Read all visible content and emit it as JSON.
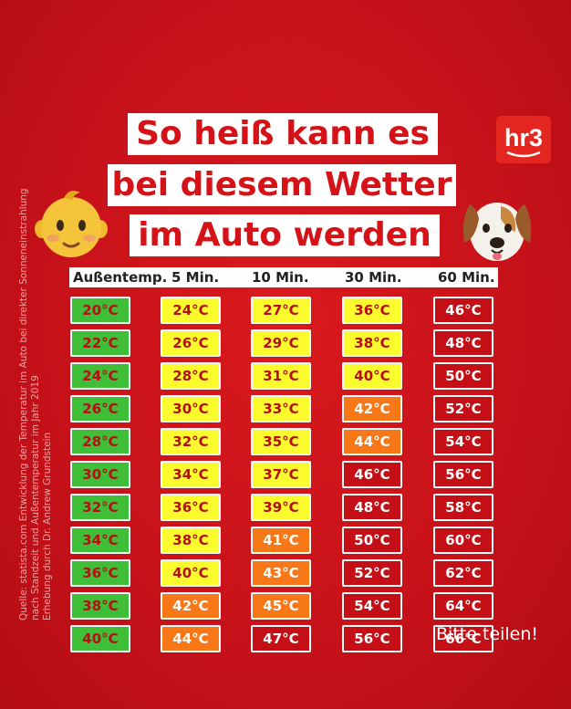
{
  "source_lines": [
    "Quelle: statista.com Entwicklung der Temperatur im Auto bei  direkter Sonneneinstrahlung",
    "nach Standzeit und Außentemperatur im Jahr 2019",
    "Erhebung durch Dr. Andrew Grundstein"
  ],
  "title": {
    "line1": "So heiß kann es",
    "line2": "bei diesem Wetter",
    "line3": "im Auto werden"
  },
  "logo": {
    "text": "hr3",
    "color": "#e3261f"
  },
  "emojis": {
    "left": "baby-face",
    "right": "dog-face"
  },
  "header": {
    "col1": "Außentemp.",
    "col2": "5 Min.",
    "col3": "10 Min.",
    "col4": "30 Min.",
    "col5": "60 Min."
  },
  "chart_data": {
    "type": "table",
    "columns": [
      "Außentemp.",
      "5 Min.",
      "10 Min.",
      "30 Min.",
      "60 Min."
    ],
    "rows": [
      [
        "20°C",
        "24°C",
        "27°C",
        "36°C",
        "46°C"
      ],
      [
        "22°C",
        "26°C",
        "29°C",
        "38°C",
        "48°C"
      ],
      [
        "24°C",
        "28°C",
        "31°C",
        "40°C",
        "50°C"
      ],
      [
        "26°C",
        "30°C",
        "33°C",
        "42°C",
        "52°C"
      ],
      [
        "28°C",
        "32°C",
        "35°C",
        "44°C",
        "54°C"
      ],
      [
        "30°C",
        "34°C",
        "37°C",
        "46°C",
        "56°C"
      ],
      [
        "32°C",
        "36°C",
        "39°C",
        "48°C",
        "58°C"
      ],
      [
        "34°C",
        "38°C",
        "41°C",
        "50°C",
        "60°C"
      ],
      [
        "36°C",
        "40°C",
        "43°C",
        "52°C",
        "62°C"
      ],
      [
        "38°C",
        "42°C",
        "45°C",
        "54°C",
        "64°C"
      ],
      [
        "40°C",
        "44°C",
        "47°C",
        "56°C",
        "66°C"
      ]
    ],
    "colors": {
      "green": "#3ebf37",
      "yellow": "#fbfb2d",
      "orange": "#f87818",
      "red": "#c30f15"
    }
  },
  "footer": {
    "share": "Bitte teilen!"
  }
}
